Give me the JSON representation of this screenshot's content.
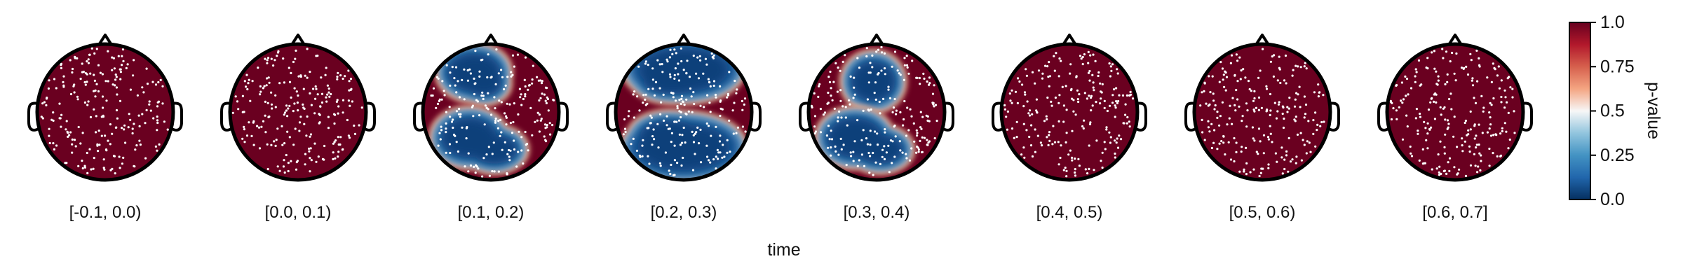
{
  "chart_data": {
    "type": "heatmap",
    "xlabel": "time",
    "colorbar": {
      "label": "p-value",
      "colormap": "RdBu",
      "range": [
        0.0,
        1.0
      ],
      "ticks": [
        "0.0",
        "0.25",
        "0.5",
        "0.75",
        "1.0"
      ]
    },
    "panels": [
      {
        "label": "[-0.1, 0.0)",
        "blue_regions": []
      },
      {
        "label": "[0.0, 0.1)",
        "blue_regions": []
      },
      {
        "label": "[0.1, 0.2)",
        "blue_regions": [
          "frontal-left",
          "posterior-left"
        ]
      },
      {
        "label": "[0.2, 0.3)",
        "blue_regions": [
          "frontal",
          "posterior"
        ]
      },
      {
        "label": "[0.3, 0.4)",
        "blue_regions": [
          "frontal-central",
          "posterior-left"
        ]
      },
      {
        "label": "[0.4, 0.5)",
        "blue_regions": []
      },
      {
        "label": "[0.5, 0.6)",
        "blue_regions": []
      },
      {
        "label": "[0.6, 0.7]",
        "blue_regions": []
      }
    ],
    "colors": {
      "high": "#6a0020",
      "low": "#0a3f7a",
      "sensor": "#ffffff",
      "outline": "#000000"
    }
  }
}
